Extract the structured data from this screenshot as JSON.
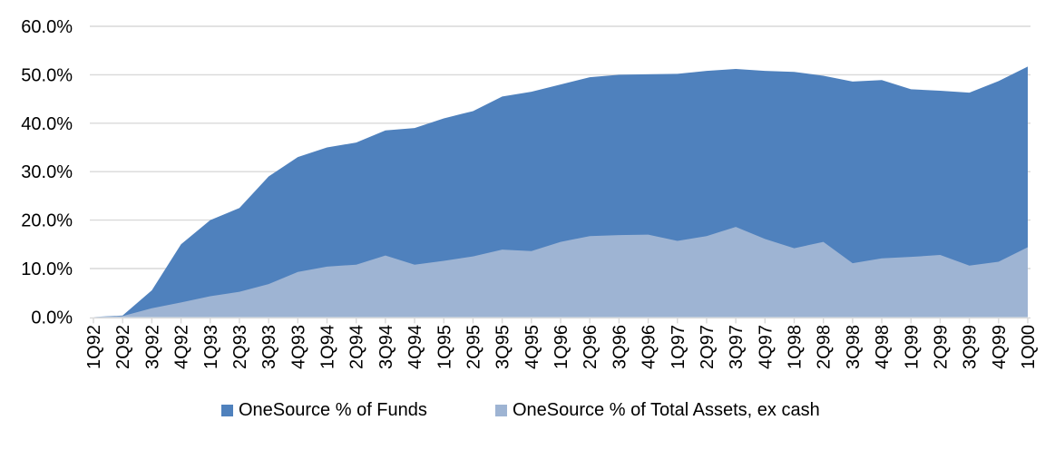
{
  "chart_data": {
    "type": "area",
    "title": "",
    "categories": [
      "1Q92",
      "2Q92",
      "3Q92",
      "4Q92",
      "1Q93",
      "2Q93",
      "3Q93",
      "4Q93",
      "1Q94",
      "2Q94",
      "3Q94",
      "4Q94",
      "1Q95",
      "2Q95",
      "3Q95",
      "4Q95",
      "1Q96",
      "2Q96",
      "3Q96",
      "4Q96",
      "1Q97",
      "2Q97",
      "3Q97",
      "4Q97",
      "1Q98",
      "2Q98",
      "3Q98",
      "4Q98",
      "1Q99",
      "2Q99",
      "3Q99",
      "4Q99",
      "1Q00"
    ],
    "series": [
      {
        "name": "OneSource % of Funds",
        "color": "#4f81bd",
        "values": [
          0.0,
          0.3,
          5.5,
          15.0,
          20.0,
          22.5,
          29.0,
          33.0,
          35.0,
          36.0,
          38.5,
          39.0,
          41.0,
          42.5,
          45.5,
          46.5,
          48.0,
          49.5,
          50.0,
          50.1,
          50.2,
          50.8,
          51.2,
          50.8,
          50.6,
          49.8,
          48.6,
          48.9,
          47.0,
          46.7,
          46.3,
          48.7,
          51.7
        ]
      },
      {
        "name": "OneSource % of Total Assets, ex cash",
        "color": "#9eb4d3",
        "values": [
          0.0,
          0.2,
          1.8,
          3.0,
          4.3,
          5.2,
          6.8,
          9.3,
          10.4,
          10.8,
          12.7,
          10.8,
          11.6,
          12.5,
          13.9,
          13.6,
          15.5,
          16.7,
          16.9,
          17.0,
          15.7,
          16.7,
          18.6,
          16.1,
          14.2,
          15.5,
          11.1,
          12.1,
          12.4,
          12.8,
          10.6,
          11.4,
          14.4
        ]
      }
    ],
    "y_ticks": [
      "0.0%",
      "10.0%",
      "20.0%",
      "30.0%",
      "40.0%",
      "50.0%",
      "60.0%"
    ],
    "ylim": [
      0,
      60
    ],
    "y_tick_step": 10,
    "grid": true,
    "legend_position": "bottom",
    "gridline_color": "#d9d9d9",
    "axis_color": "#d9d9d9",
    "text_color": "#000000"
  }
}
